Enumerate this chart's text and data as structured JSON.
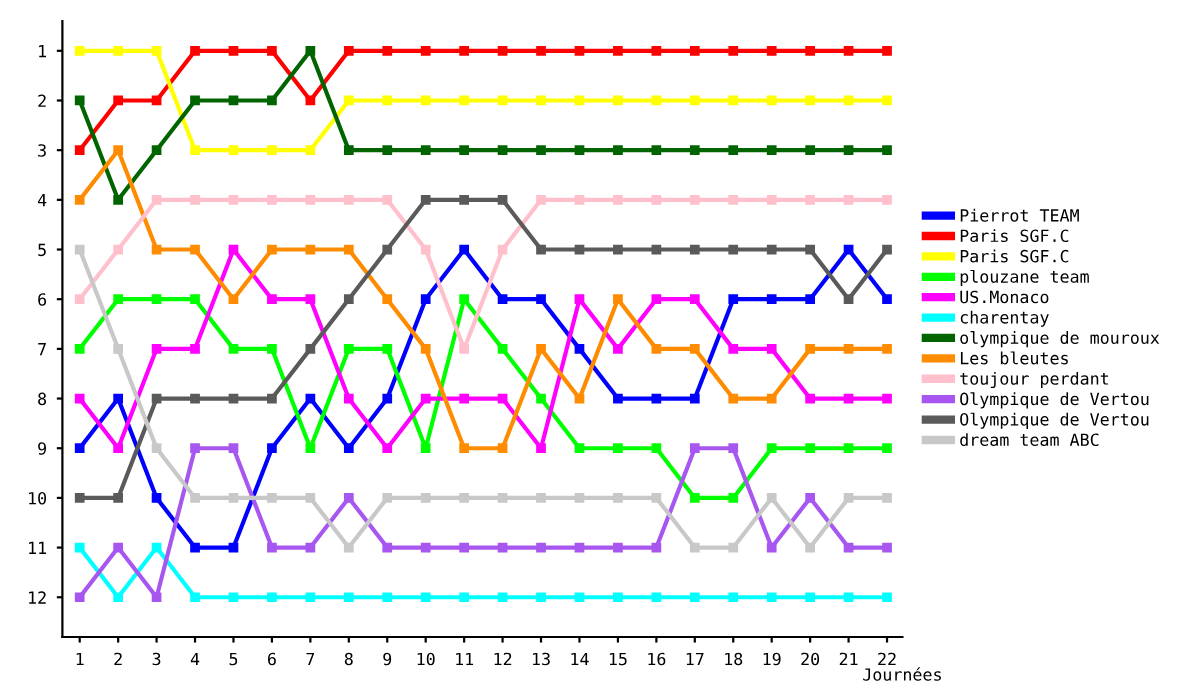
{
  "chart_data": {
    "type": "line",
    "xlabel": "Journées",
    "x": [
      1,
      2,
      3,
      4,
      5,
      6,
      7,
      8,
      9,
      10,
      11,
      12,
      13,
      14,
      15,
      16,
      17,
      18,
      19,
      20,
      21,
      22
    ],
    "xlim": [
      0.55,
      22.4
    ],
    "xticks": [
      1,
      2,
      3,
      4,
      5,
      6,
      7,
      8,
      9,
      10,
      11,
      12,
      13,
      14,
      15,
      16,
      17,
      18,
      19,
      20,
      21,
      22
    ],
    "ylim": [
      12.8,
      0.4
    ],
    "yticks": [
      1,
      2,
      3,
      4,
      5,
      6,
      7,
      8,
      9,
      10,
      11,
      12
    ],
    "grid": false,
    "legend": "right",
    "marker": "square",
    "line_style": "solid",
    "series": [
      {
        "name": "Pierrot TEAM",
        "color": "#0000ff",
        "values": [
          9,
          8,
          10,
          11,
          11,
          9,
          8,
          9,
          8,
          6,
          5,
          6,
          6,
          7,
          8,
          8,
          8,
          6,
          6,
          6,
          5,
          6
        ]
      },
      {
        "name": "Paris SGF.C",
        "color": "#ff0000",
        "values": [
          3,
          2,
          2,
          1,
          1,
          1,
          2,
          1,
          1,
          1,
          1,
          1,
          1,
          1,
          1,
          1,
          1,
          1,
          1,
          1,
          1,
          1
        ]
      },
      {
        "name": "Paris SGF.C",
        "color": "#ffff00",
        "values": [
          1,
          1,
          1,
          3,
          3,
          3,
          3,
          2,
          2,
          2,
          2,
          2,
          2,
          2,
          2,
          2,
          2,
          2,
          2,
          2,
          2,
          2
        ]
      },
      {
        "name": "plouzane team",
        "color": "#00ff00",
        "values": [
          7,
          6,
          6,
          6,
          7,
          7,
          9,
          7,
          7,
          9,
          6,
          7,
          8,
          9,
          9,
          9,
          10,
          10,
          9,
          9,
          9,
          9
        ]
      },
      {
        "name": "US.Monaco",
        "color": "#ff00ff",
        "values": [
          8,
          9,
          7,
          7,
          5,
          6,
          6,
          8,
          9,
          8,
          8,
          8,
          9,
          6,
          7,
          6,
          6,
          7,
          7,
          8,
          8,
          8
        ]
      },
      {
        "name": "charentay",
        "color": "#00ffff",
        "values": [
          11,
          12,
          11,
          12,
          12,
          12,
          12,
          12,
          12,
          12,
          12,
          12,
          12,
          12,
          12,
          12,
          12,
          12,
          12,
          12,
          12,
          12
        ]
      },
      {
        "name": "olympique de mouroux",
        "color": "#006400",
        "values": [
          2,
          4,
          3,
          2,
          2,
          2,
          1,
          3,
          3,
          3,
          3,
          3,
          3,
          3,
          3,
          3,
          3,
          3,
          3,
          3,
          3,
          3
        ]
      },
      {
        "name": "Les bleutes",
        "color": "#ff8c00",
        "values": [
          4,
          3,
          5,
          5,
          6,
          5,
          5,
          5,
          6,
          7,
          9,
          9,
          7,
          8,
          6,
          7,
          7,
          8,
          8,
          7,
          7,
          7
        ]
      },
      {
        "name": "toujour perdant",
        "color": "#ffc0cb",
        "values": [
          6,
          5,
          4,
          4,
          4,
          4,
          4,
          4,
          4,
          5,
          7,
          5,
          4,
          4,
          4,
          4,
          4,
          4,
          4,
          4,
          4,
          4
        ]
      },
      {
        "name": "Olympique de Vertou",
        "color": "#a757f0",
        "values": [
          12,
          11,
          12,
          9,
          9,
          11,
          11,
          10,
          11,
          11,
          11,
          11,
          11,
          11,
          11,
          11,
          9,
          9,
          11,
          10,
          11,
          11
        ]
      },
      {
        "name": "Olympique de Vertou",
        "color": "#5a5a5a",
        "values": [
          10,
          10,
          8,
          8,
          8,
          8,
          7,
          6,
          5,
          4,
          4,
          4,
          5,
          5,
          5,
          5,
          5,
          5,
          5,
          5,
          6,
          5
        ]
      },
      {
        "name": "dream team ABC",
        "color": "#c8c8c8",
        "values": [
          5,
          7,
          9,
          10,
          10,
          10,
          10,
          11,
          10,
          10,
          10,
          10,
          10,
          10,
          10,
          10,
          11,
          11,
          10,
          11,
          10,
          10
        ]
      }
    ]
  }
}
